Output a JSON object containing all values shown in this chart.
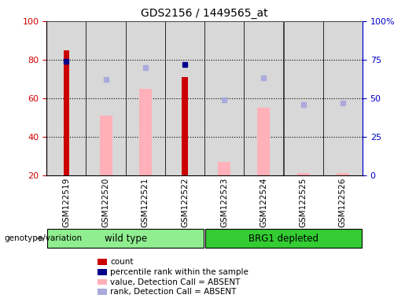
{
  "title": "GDS2156 / 1449565_at",
  "samples": [
    "GSM122519",
    "GSM122520",
    "GSM122521",
    "GSM122522",
    "GSM122523",
    "GSM122524",
    "GSM122525",
    "GSM122526"
  ],
  "groups": [
    {
      "label": "wild type",
      "color": "#90ee90",
      "samples": [
        0,
        1,
        2,
        3
      ]
    },
    {
      "label": "BRG1 depleted",
      "color": "#33cc33",
      "samples": [
        4,
        5,
        6,
        7
      ]
    }
  ],
  "red_bars": {
    "values": [
      85,
      null,
      null,
      71,
      null,
      null,
      null,
      null
    ],
    "color": "#cc0000"
  },
  "blue_squares": {
    "values": [
      74,
      null,
      null,
      72,
      null,
      null,
      null,
      null
    ],
    "color": "#00008b"
  },
  "pink_bars": {
    "values": [
      null,
      51,
      65,
      null,
      27,
      55,
      21,
      21
    ],
    "color": "#ffb0b8"
  },
  "light_blue_squares": {
    "values": [
      null,
      62,
      70,
      null,
      49,
      63,
      46,
      47
    ],
    "color": "#aaaadd"
  },
  "ylim_left": [
    20,
    100
  ],
  "ylim_right": [
    0,
    100
  ],
  "yticks_left": [
    20,
    40,
    60,
    80,
    100
  ],
  "yticks_right": [
    0,
    25,
    50,
    75,
    100
  ],
  "yticklabels_right": [
    "0",
    "25",
    "50",
    "75",
    "100%"
  ],
  "ylabel_left_color": "#cc0000",
  "ylabel_right_color": "#0000cc",
  "background_color": "#d8d8d8",
  "legend_items": [
    {
      "label": "count",
      "color": "#cc0000"
    },
    {
      "label": "percentile rank within the sample",
      "color": "#00008b"
    },
    {
      "label": "value, Detection Call = ABSENT",
      "color": "#ffb0b8"
    },
    {
      "label": "rank, Detection Call = ABSENT",
      "color": "#aaaadd"
    }
  ],
  "genotype_label": "genotype/variation",
  "arrow_color": "#808080"
}
